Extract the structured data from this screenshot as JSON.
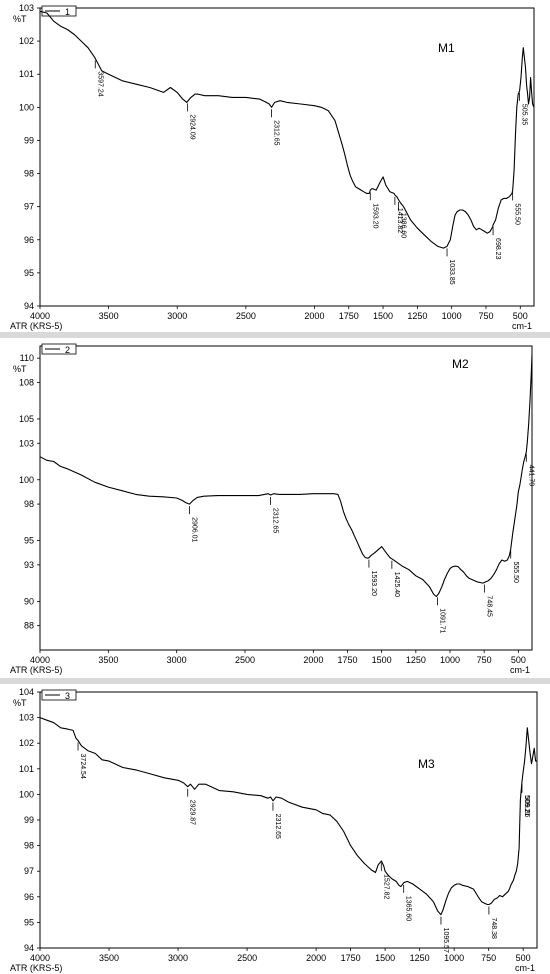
{
  "chart_data": [
    {
      "type": "line",
      "id": "m1",
      "legend_entry": "1",
      "title": "M1",
      "xlabel": "ATR (KRS-5)",
      "x_unit": "cm-1",
      "ylabel": "%T",
      "xlim": [
        4000,
        400
      ],
      "ylim": [
        94,
        103
      ],
      "x_ticks": [
        4000,
        3500,
        3000,
        2500,
        2000,
        1750,
        1500,
        1250,
        1000,
        750,
        500
      ],
      "y_ticks": [
        94,
        95,
        96,
        97,
        98,
        99,
        100,
        101,
        102,
        103
      ],
      "series": [
        {
          "x": [
            4000,
            3950,
            3900,
            3850,
            3800,
            3750,
            3700,
            3650,
            3600,
            3550,
            3500,
            3400,
            3300,
            3200,
            3100,
            3050,
            3000,
            2960,
            2930,
            2900,
            2870,
            2850,
            2800,
            2700,
            2600,
            2500,
            2400,
            2350,
            2330,
            2312,
            2290,
            2250,
            2200,
            2100,
            2000,
            1950,
            1900,
            1850,
            1800,
            1780,
            1760,
            1740,
            1720,
            1700,
            1680,
            1660,
            1640,
            1620,
            1600,
            1593,
            1580,
            1550,
            1520,
            1500,
            1480,
            1450,
            1420,
            1413,
            1400,
            1386,
            1370,
            1350,
            1300,
            1250,
            1200,
            1150,
            1100,
            1060,
            1034,
            1010,
            990,
            975,
            960,
            940,
            920,
            900,
            880,
            860,
            840,
            820,
            800,
            780,
            760,
            740,
            720,
            700,
            698,
            680,
            660,
            640,
            620,
            600,
            580,
            560,
            555,
            545,
            535,
            525,
            515,
            505,
            495,
            485,
            478,
            470,
            462,
            455,
            447,
            440,
            432,
            425,
            418,
            410,
            400
          ],
          "y": [
            102.9,
            102.85,
            102.6,
            102.45,
            102.35,
            102.2,
            102.0,
            101.8,
            101.5,
            101.1,
            101.0,
            100.8,
            100.7,
            100.6,
            100.45,
            100.6,
            100.45,
            100.25,
            100.15,
            100.3,
            100.4,
            100.4,
            100.35,
            100.35,
            100.3,
            100.3,
            100.25,
            100.15,
            100.1,
            100.0,
            100.15,
            100.2,
            100.15,
            100.1,
            100.05,
            100.0,
            99.9,
            99.6,
            98.9,
            98.6,
            98.25,
            97.95,
            97.75,
            97.6,
            97.55,
            97.5,
            97.45,
            97.4,
            97.4,
            97.5,
            97.55,
            97.5,
            97.75,
            97.9,
            97.65,
            97.45,
            97.4,
            97.35,
            97.3,
            97.2,
            97.1,
            97.0,
            96.6,
            96.35,
            96.15,
            95.95,
            95.8,
            95.75,
            95.8,
            96.0,
            96.45,
            96.75,
            96.85,
            96.9,
            96.9,
            96.85,
            96.75,
            96.6,
            96.4,
            96.3,
            96.35,
            96.3,
            96.25,
            96.2,
            96.25,
            96.4,
            96.45,
            96.6,
            96.95,
            97.2,
            97.25,
            97.25,
            97.3,
            97.4,
            97.5,
            98.1,
            99.2,
            100.0,
            100.4,
            100.5,
            100.9,
            101.5,
            101.8,
            101.5,
            101.2,
            100.7,
            100.4,
            100.1,
            100.3,
            100.9,
            100.5,
            100.1,
            100.0
          ]
        }
      ],
      "peak_labels": [
        {
          "x": 3597.24,
          "label": "3597.24"
        },
        {
          "x": 2924.09,
          "label": "2924.09"
        },
        {
          "x": 2312.65,
          "label": "2312.65"
        },
        {
          "x": 1593.2,
          "label": "1593.20"
        },
        {
          "x": 1413.82,
          "label": "1413.82"
        },
        {
          "x": 1386.6,
          "label": "1386.60"
        },
        {
          "x": 1033.85,
          "label": "1033.85"
        },
        {
          "x": 698.23,
          "label": "698.23"
        },
        {
          "x": 555.5,
          "label": "555.50"
        },
        {
          "x": 505.35,
          "label": "505.35"
        }
      ]
    },
    {
      "type": "line",
      "id": "m2",
      "legend_entry": "2",
      "title": "M2",
      "xlabel": "ATR (KRS-5)",
      "x_unit": "cm-1",
      "ylabel": "%T",
      "xlim": [
        4000,
        400
      ],
      "ylim": [
        86,
        111
      ],
      "x_ticks": [
        4000,
        3500,
        3000,
        2500,
        2000,
        1750,
        1500,
        1250,
        1000,
        750,
        500
      ],
      "y_ticks": [
        88,
        90,
        93,
        95,
        98,
        100,
        103,
        105,
        108,
        110
      ],
      "series": [
        {
          "x": [
            4000,
            3950,
            3900,
            3850,
            3800,
            3700,
            3600,
            3500,
            3400,
            3300,
            3200,
            3100,
            3000,
            2960,
            2930,
            2906,
            2880,
            2850,
            2800,
            2700,
            2600,
            2500,
            2400,
            2330,
            2312,
            2290,
            2250,
            2200,
            2100,
            2000,
            1900,
            1850,
            1820,
            1800,
            1780,
            1760,
            1740,
            1720,
            1700,
            1680,
            1660,
            1640,
            1620,
            1600,
            1593,
            1575,
            1550,
            1520,
            1500,
            1480,
            1460,
            1440,
            1425,
            1400,
            1350,
            1300,
            1250,
            1200,
            1150,
            1120,
            1100,
            1092,
            1080,
            1060,
            1040,
            1020,
            1000,
            980,
            960,
            940,
            920,
            900,
            880,
            860,
            840,
            820,
            800,
            780,
            760,
            748,
            740,
            720,
            700,
            680,
            660,
            640,
            620,
            600,
            580,
            565,
            556,
            548,
            540,
            530,
            520,
            510,
            500,
            490,
            480,
            470,
            460,
            450,
            441.7,
            435,
            425,
            415,
            405,
            400
          ],
          "y": [
            101.9,
            101.6,
            101.5,
            101.1,
            100.9,
            100.4,
            99.8,
            99.4,
            99.1,
            98.8,
            98.65,
            98.6,
            98.5,
            98.3,
            98.1,
            98.0,
            98.3,
            98.55,
            98.65,
            98.7,
            98.7,
            98.7,
            98.7,
            98.85,
            98.75,
            98.85,
            98.8,
            98.8,
            98.8,
            98.85,
            98.85,
            98.85,
            98.8,
            98.2,
            97.4,
            96.8,
            96.3,
            95.9,
            95.4,
            94.9,
            94.4,
            93.9,
            93.6,
            93.55,
            93.6,
            93.8,
            94.0,
            94.3,
            94.5,
            94.2,
            93.9,
            93.6,
            93.5,
            93.3,
            92.9,
            92.6,
            92.1,
            91.8,
            91.2,
            90.6,
            90.4,
            90.5,
            90.7,
            91.2,
            91.8,
            92.3,
            92.7,
            92.85,
            92.9,
            92.85,
            92.6,
            92.4,
            92.1,
            91.9,
            91.8,
            91.7,
            91.6,
            91.55,
            91.5,
            91.55,
            91.6,
            91.7,
            91.9,
            92.2,
            92.6,
            93.1,
            93.4,
            93.3,
            93.4,
            93.8,
            94.3,
            95.0,
            95.7,
            96.4,
            97.2,
            98.0,
            99.0,
            99.5,
            100.2,
            100.9,
            101.5,
            101.9,
            102.3,
            103.0,
            104.5,
            106.5,
            108.8,
            110.3
          ]
        }
      ],
      "peak_labels": [
        {
          "x": 2906.01,
          "label": "2906.01"
        },
        {
          "x": 2312.65,
          "label": "2312.65"
        },
        {
          "x": 1593.2,
          "label": "1593.20"
        },
        {
          "x": 1425.4,
          "label": "1425.40"
        },
        {
          "x": 1091.71,
          "label": "1091.71"
        },
        {
          "x": 748.45,
          "label": "748.45"
        },
        {
          "x": 555.5,
          "label": "555.50"
        },
        {
          "x": 441.7,
          "label": "441.70"
        }
      ]
    },
    {
      "type": "line",
      "id": "m3",
      "legend_entry": "3",
      "title": "M3",
      "xlabel": "ATR (KRS-5)",
      "x_unit": "cm-1",
      "ylabel": "%T",
      "xlim": [
        4000,
        400
      ],
      "ylim": [
        94,
        104
      ],
      "x_ticks": [
        4000,
        3500,
        3000,
        2500,
        2000,
        1750,
        1500,
        1250,
        1000,
        750,
        500
      ],
      "y_ticks": [
        94,
        95,
        96,
        97,
        98,
        99,
        100,
        101,
        102,
        103,
        104
      ],
      "series": [
        {
          "x": [
            4000,
            3950,
            3900,
            3850,
            3800,
            3760,
            3740,
            3724,
            3700,
            3650,
            3600,
            3550,
            3500,
            3400,
            3300,
            3200,
            3100,
            3000,
            2960,
            2930,
            2910,
            2880,
            2850,
            2800,
            2700,
            2600,
            2500,
            2400,
            2350,
            2330,
            2312,
            2290,
            2250,
            2200,
            2100,
            2000,
            1950,
            1900,
            1850,
            1800,
            1750,
            1700,
            1650,
            1600,
            1570,
            1550,
            1527,
            1510,
            1500,
            1480,
            1450,
            1420,
            1400,
            1386,
            1365,
            1340,
            1300,
            1250,
            1200,
            1150,
            1120,
            1096,
            1080,
            1060,
            1040,
            1020,
            1000,
            980,
            960,
            940,
            900,
            860,
            820,
            800,
            780,
            760,
            748,
            730,
            710,
            690,
            670,
            650,
            630,
            610,
            600,
            590,
            580,
            570,
            560,
            550,
            540,
            530,
            520,
            509,
            500,
            490,
            480,
            470,
            460,
            450,
            440,
            430,
            420,
            410,
            400
          ],
          "y": [
            103.0,
            102.9,
            102.8,
            102.6,
            102.55,
            102.5,
            102.2,
            102.1,
            101.9,
            101.7,
            101.6,
            101.35,
            101.3,
            101.05,
            100.95,
            100.8,
            100.65,
            100.55,
            100.45,
            100.3,
            100.4,
            100.2,
            100.4,
            100.4,
            100.15,
            100.1,
            100.0,
            99.95,
            99.85,
            99.9,
            99.75,
            99.9,
            99.85,
            99.7,
            99.5,
            99.4,
            99.25,
            99.2,
            98.95,
            98.55,
            98.0,
            97.6,
            97.3,
            97.05,
            96.95,
            97.25,
            97.4,
            97.2,
            97.0,
            96.85,
            96.7,
            96.6,
            96.45,
            96.4,
            96.55,
            96.6,
            96.5,
            96.3,
            96.1,
            95.8,
            95.45,
            95.3,
            95.5,
            95.85,
            96.15,
            96.35,
            96.45,
            96.5,
            96.5,
            96.45,
            96.4,
            96.3,
            95.95,
            95.8,
            95.75,
            95.7,
            95.7,
            95.75,
            95.9,
            95.95,
            96.05,
            96.0,
            96.1,
            96.2,
            96.3,
            96.45,
            96.55,
            96.65,
            96.85,
            97.0,
            97.3,
            97.9,
            99.8,
            100.5,
            100.9,
            101.3,
            101.9,
            102.6,
            102.1,
            101.6,
            101.2,
            101.5,
            101.8,
            101.3,
            101.3
          ]
        }
      ],
      "peak_labels": [
        {
          "x": 3724.54,
          "label": "3724.54"
        },
        {
          "x": 2929.87,
          "label": "2929.87"
        },
        {
          "x": 2312.65,
          "label": "2312.65"
        },
        {
          "x": 1527.82,
          "label": "1527.82"
        },
        {
          "x": 1365.6,
          "label": "1365.60"
        },
        {
          "x": 1095.57,
          "label": "1095.57"
        },
        {
          "x": 748.38,
          "label": "748.38"
        },
        {
          "x": 509.86,
          "label": "509.86"
        },
        {
          "x": 509.21,
          "label": "509.21"
        }
      ]
    }
  ]
}
